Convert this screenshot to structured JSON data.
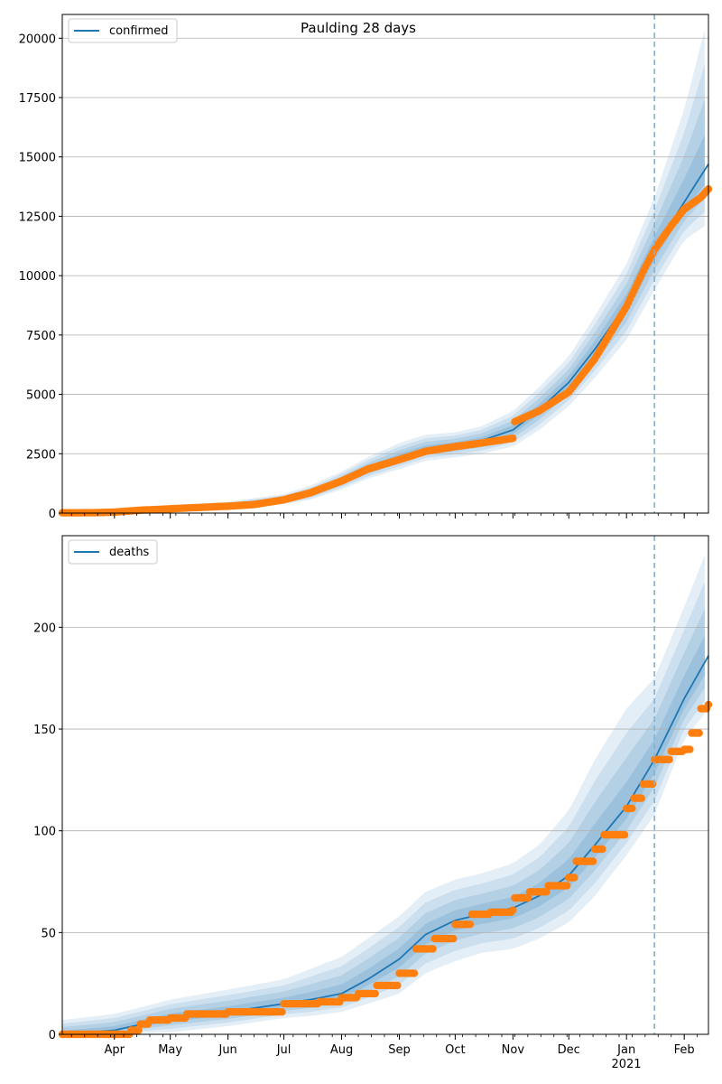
{
  "chart_data": [
    {
      "type": "line",
      "title": "Paulding 28 days",
      "legend": {
        "label": "confirmed",
        "placement": "top-left"
      },
      "xlabel": "",
      "ylabel": "",
      "x_range": [
        "2020-03-04",
        "2021-02-14"
      ],
      "ylim": [
        0,
        21000
      ],
      "y_ticks": [
        0,
        2500,
        5000,
        7500,
        10000,
        12500,
        15000,
        17500,
        20000
      ],
      "grid": "horizontal",
      "forecast_start": "2021-01-16",
      "series": [
        {
          "name": "confirmed",
          "kind": "model-fit-with-credible-bands",
          "color": "#1f77b4",
          "x": [
            "2020-03-04",
            "2020-04-01",
            "2020-05-01",
            "2020-06-01",
            "2020-07-01",
            "2020-07-15",
            "2020-08-01",
            "2020-08-15",
            "2020-09-01",
            "2020-09-15",
            "2020-10-01",
            "2020-10-15",
            "2020-11-01",
            "2020-11-15",
            "2020-12-01",
            "2020-12-15",
            "2021-01-01",
            "2021-01-16",
            "2021-02-01",
            "2021-02-14"
          ],
          "values": [
            0,
            40,
            180,
            320,
            560,
            800,
            1350,
            1850,
            2350,
            2700,
            2850,
            3050,
            3500,
            4350,
            5500,
            6900,
            8800,
            11100,
            13100,
            14700
          ],
          "band_outer_upper": [
            80,
            150,
            330,
            480,
            800,
            1150,
            1750,
            2350,
            2950,
            3300,
            3400,
            3650,
            4300,
            5300,
            6600,
            8300,
            10500,
            13300,
            17000,
            21000
          ],
          "band_outer_lower": [
            0,
            0,
            60,
            180,
            380,
            560,
            1000,
            1450,
            1850,
            2200,
            2350,
            2500,
            2800,
            3500,
            4500,
            5700,
            7300,
            9400,
            11500,
            12200
          ]
        },
        {
          "name": "",
          "kind": "observed",
          "color": "#ff7f0e",
          "x": [
            "2020-03-04",
            "2020-03-20",
            "2020-04-01",
            "2020-04-15",
            "2020-05-01",
            "2020-05-15",
            "2020-06-01",
            "2020-06-15",
            "2020-07-01",
            "2020-07-15",
            "2020-08-01",
            "2020-08-15",
            "2020-09-01",
            "2020-09-15",
            "2020-10-01",
            "2020-10-15",
            "2020-11-01",
            "2020-11-02",
            "2020-11-15",
            "2020-12-01",
            "2020-12-15",
            "2021-01-01",
            "2021-01-10",
            "2021-01-16",
            "2021-01-25",
            "2021-02-01",
            "2021-02-10",
            "2021-02-14"
          ],
          "values": [
            10,
            15,
            40,
            120,
            180,
            230,
            290,
            360,
            560,
            850,
            1350,
            1850,
            2250,
            2600,
            2800,
            2950,
            3150,
            3850,
            4300,
            5100,
            6500,
            8700,
            10200,
            11100,
            12100,
            12800,
            13300,
            13650
          ]
        }
      ]
    },
    {
      "type": "line",
      "title": "",
      "legend": {
        "label": "deaths",
        "placement": "top-left"
      },
      "xlabel": "",
      "ylabel": "",
      "x_range": [
        "2020-03-04",
        "2021-02-14"
      ],
      "ylim": [
        0,
        245
      ],
      "y_ticks": [
        0,
        50,
        100,
        150,
        200
      ],
      "x_ticks": [
        {
          "date": "2020-04-01",
          "label": "Apr"
        },
        {
          "date": "2020-05-01",
          "label": "May"
        },
        {
          "date": "2020-06-01",
          "label": "Jun"
        },
        {
          "date": "2020-07-01",
          "label": "Jul"
        },
        {
          "date": "2020-08-01",
          "label": "Aug"
        },
        {
          "date": "2020-09-01",
          "label": "Sep"
        },
        {
          "date": "2020-10-01",
          "label": "Oct"
        },
        {
          "date": "2020-11-01",
          "label": "Nov"
        },
        {
          "date": "2020-12-01",
          "label": "Dec"
        },
        {
          "date": "2021-01-01",
          "label": "Jan"
        },
        {
          "date": "2021-02-01",
          "label": "Feb"
        }
      ],
      "year_label": "2021",
      "grid": "horizontal",
      "forecast_start": "2021-01-16",
      "series": [
        {
          "name": "deaths",
          "kind": "model-fit-with-credible-bands",
          "color": "#1f77b4",
          "x": [
            "2020-03-04",
            "2020-04-01",
            "2020-05-01",
            "2020-06-01",
            "2020-07-01",
            "2020-07-15",
            "2020-08-01",
            "2020-08-15",
            "2020-09-01",
            "2020-09-15",
            "2020-10-01",
            "2020-10-15",
            "2020-11-01",
            "2020-11-15",
            "2020-12-01",
            "2020-12-15",
            "2021-01-01",
            "2021-01-16",
            "2021-02-01",
            "2021-02-14"
          ],
          "values": [
            0,
            2,
            8,
            11,
            15,
            17,
            20,
            27,
            37,
            49,
            56,
            59,
            62,
            68,
            78,
            93,
            112,
            135,
            165,
            186
          ],
          "band_outer_upper": [
            7,
            10,
            17,
            22,
            27,
            32,
            38,
            47,
            58,
            70,
            76,
            79,
            84,
            93,
            110,
            135,
            160,
            175,
            210,
            240
          ],
          "band_outer_lower": [
            0,
            0,
            1,
            4,
            8,
            9,
            11,
            15,
            20,
            30,
            36,
            40,
            42,
            47,
            55,
            68,
            88,
            108,
            145,
            160
          ]
        },
        {
          "name": "",
          "kind": "observed",
          "color": "#ff7f0e",
          "x": [
            "2020-03-04",
            "2020-04-01",
            "2020-04-10",
            "2020-04-15",
            "2020-04-20",
            "2020-05-01",
            "2020-05-10",
            "2020-06-01",
            "2020-06-10",
            "2020-07-01",
            "2020-07-20",
            "2020-08-01",
            "2020-08-10",
            "2020-08-20",
            "2020-09-01",
            "2020-09-10",
            "2020-09-20",
            "2020-10-01",
            "2020-10-10",
            "2020-10-20",
            "2020-11-01",
            "2020-11-02",
            "2020-11-10",
            "2020-11-20",
            "2020-12-01",
            "2020-12-05",
            "2020-12-15",
            "2020-12-20",
            "2021-01-01",
            "2021-01-05",
            "2021-01-10",
            "2021-01-16",
            "2021-01-25",
            "2021-02-01",
            "2021-02-05",
            "2021-02-10",
            "2021-02-14"
          ],
          "values": [
            0,
            0,
            2,
            5,
            7,
            8,
            10,
            11,
            11,
            15,
            16,
            18,
            20,
            24,
            30,
            42,
            47,
            54,
            59,
            60,
            61,
            67,
            70,
            73,
            77,
            85,
            91,
            98,
            111,
            116,
            123,
            135,
            139,
            140,
            148,
            160,
            162
          ]
        }
      ]
    }
  ],
  "colors": {
    "model": "#1f77b4",
    "observed": "#ff7f0e",
    "grid": "#b0b0b0",
    "forecast_line": "#7fb2d6"
  }
}
